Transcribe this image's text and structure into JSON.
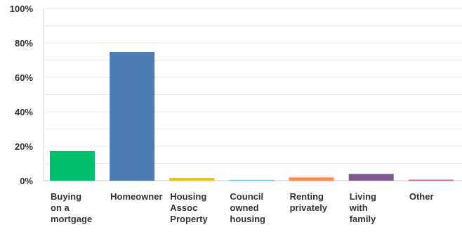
{
  "chart_data": {
    "type": "bar",
    "categories": [
      "Buying on a mortgage",
      "Homeowner",
      "Housing Assoc Property",
      "Council owned housing",
      "Renting privately",
      "Living with family",
      "Other"
    ],
    "category_lines": [
      [
        "Buying",
        "on a",
        "mortgage"
      ],
      [
        "Homeowner"
      ],
      [
        "Housing",
        "Assoc",
        "Property"
      ],
      [
        "Council",
        "owned",
        "housing"
      ],
      [
        "Renting",
        "privately"
      ],
      [
        "Living",
        "with",
        "family"
      ],
      [
        "Other"
      ]
    ],
    "values": [
      17.2,
      74.7,
      1.6,
      0.5,
      1.9,
      3.9,
      0.6
    ],
    "unit": "%",
    "colors": [
      "#00bf6f",
      "#507cb6",
      "#f9be00",
      "#6bc8cd",
      "#ff8b4f",
      "#7f5a8e",
      "#d25f90"
    ],
    "y_ticks": [
      "0%",
      "20%",
      "40%",
      "60%",
      "80%",
      "100%"
    ],
    "ylim": [
      0,
      100
    ],
    "grid": true,
    "legend": "none"
  }
}
